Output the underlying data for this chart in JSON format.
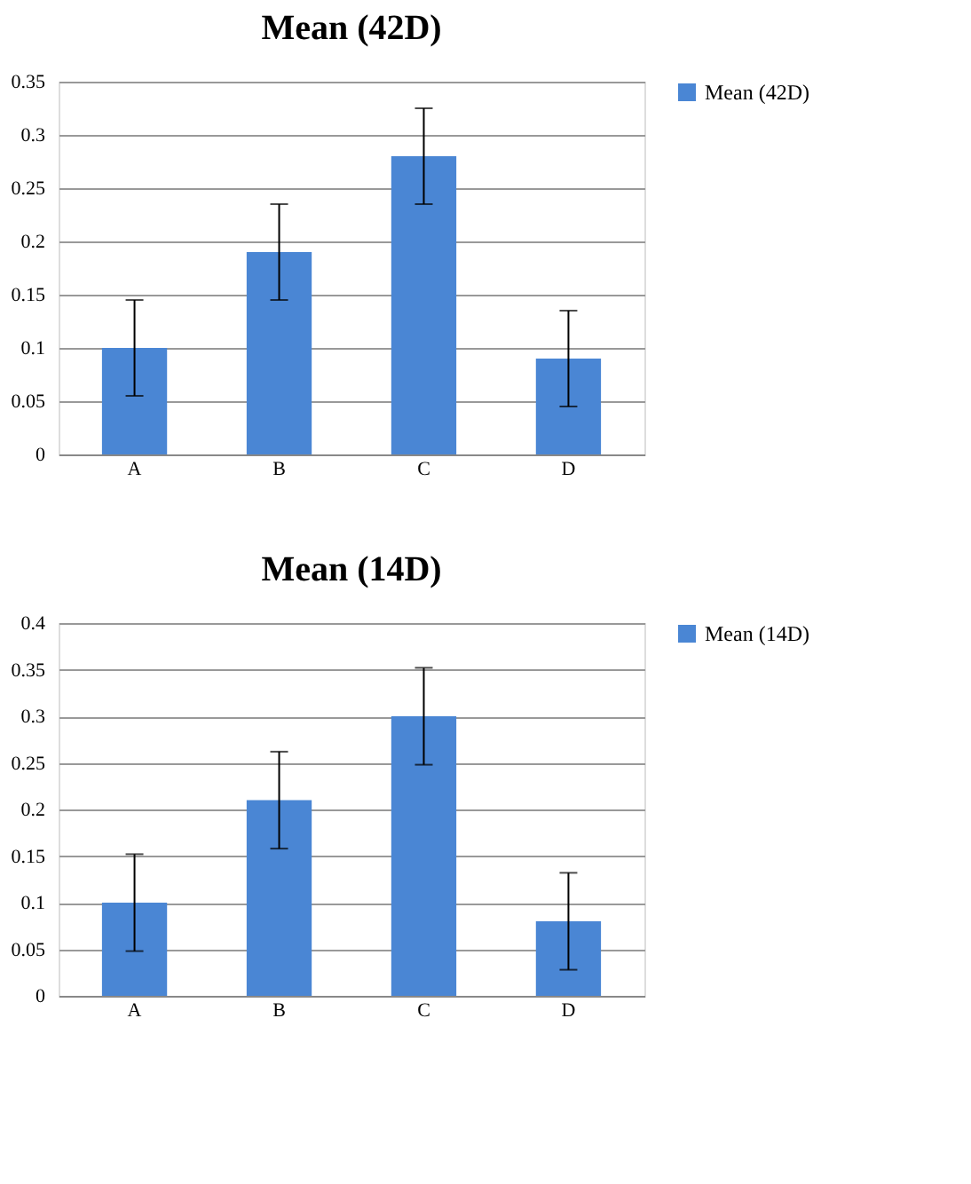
{
  "chart_data": [
    {
      "type": "bar",
      "title": "Mean (42D)",
      "categories": [
        "A",
        "B",
        "C",
        "D"
      ],
      "series": [
        {
          "name": "Mean (42D)",
          "color": "#4a86d4",
          "values": [
            0.1,
            0.19,
            0.28,
            0.09
          ],
          "errors": [
            0.045,
            0.045,
            0.045,
            0.045
          ]
        }
      ],
      "ylim": [
        0,
        0.35
      ],
      "yticks": [
        0,
        0.05,
        0.1,
        0.15,
        0.2,
        0.25,
        0.3,
        0.35
      ],
      "grid": "y",
      "legend": "right"
    },
    {
      "type": "bar",
      "title": "Mean (14D)",
      "categories": [
        "A",
        "B",
        "C",
        "D"
      ],
      "series": [
        {
          "name": "Mean (14D)",
          "color": "#4a86d4",
          "values": [
            0.1,
            0.21,
            0.3,
            0.08
          ],
          "errors": [
            0.052,
            0.052,
            0.052,
            0.052
          ]
        }
      ],
      "ylim": [
        0,
        0.4
      ],
      "yticks": [
        0,
        0.05,
        0.1,
        0.15,
        0.2,
        0.25,
        0.3,
        0.35,
        0.4
      ],
      "grid": "y",
      "legend": "right"
    }
  ]
}
